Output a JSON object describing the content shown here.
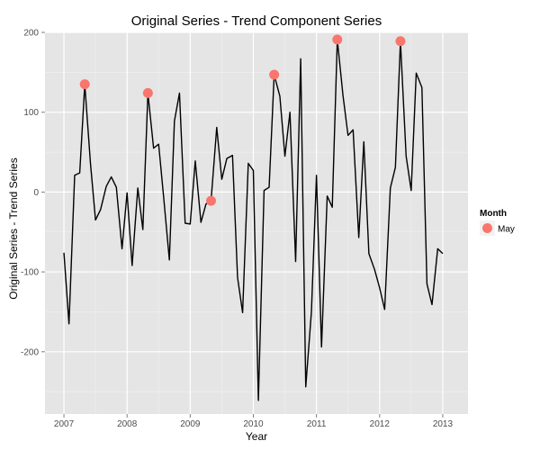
{
  "chart_data": {
    "type": "line",
    "title": "Original Series - Trend Component Series",
    "xlabel": "Year",
    "ylabel": "Original Series - Trend Series",
    "xlim": [
      2006.7,
      2013.4
    ],
    "ylim": [
      -278,
      200
    ],
    "x_ticks": [
      2007,
      2008,
      2009,
      2010,
      2011,
      2012,
      2013
    ],
    "x_tick_labels": [
      "2007",
      "2008",
      "2009",
      "2010",
      "2011",
      "2012",
      "2013"
    ],
    "y_ticks": [
      -200,
      -100,
      0,
      100,
      200
    ],
    "y_tick_labels": [
      "-200",
      "-100",
      "0",
      "100",
      "200"
    ],
    "grid": true,
    "panel_background": "#e5e5e5",
    "line_color": "#000000",
    "point_color": "#f8766d",
    "legend": {
      "title": "Month",
      "position": "right",
      "entries": [
        "May"
      ]
    },
    "series": [
      {
        "values": [
          [
            2007.0,
            -76
          ],
          [
            2007.08,
            -165
          ],
          [
            2007.17,
            21
          ],
          [
            2007.25,
            24
          ],
          [
            2007.33,
            135
          ],
          [
            2007.42,
            36
          ],
          [
            2007.5,
            -35
          ],
          [
            2007.58,
            -22
          ],
          [
            2007.67,
            7
          ],
          [
            2007.75,
            19
          ],
          [
            2007.83,
            6
          ],
          [
            2007.92,
            -71
          ],
          [
            2008.0,
            -1
          ],
          [
            2008.08,
            -92
          ],
          [
            2008.17,
            5
          ],
          [
            2008.25,
            -47
          ],
          [
            2008.33,
            124
          ],
          [
            2008.42,
            55
          ],
          [
            2008.5,
            60
          ],
          [
            2008.58,
            -7
          ],
          [
            2008.67,
            -85
          ],
          [
            2008.75,
            89
          ],
          [
            2008.83,
            124
          ],
          [
            2008.92,
            -39
          ],
          [
            2009.0,
            -40
          ],
          [
            2009.08,
            39
          ],
          [
            2009.17,
            -38
          ],
          [
            2009.25,
            -15
          ],
          [
            2009.33,
            -11
          ],
          [
            2009.42,
            81
          ],
          [
            2009.5,
            16
          ],
          [
            2009.58,
            42
          ],
          [
            2009.67,
            46
          ],
          [
            2009.75,
            -107
          ],
          [
            2009.83,
            -151
          ],
          [
            2009.92,
            36
          ],
          [
            2010.0,
            27
          ],
          [
            2010.08,
            -261
          ],
          [
            2010.17,
            2
          ],
          [
            2010.25,
            6
          ],
          [
            2010.33,
            147
          ],
          [
            2010.42,
            120
          ],
          [
            2010.5,
            45
          ],
          [
            2010.58,
            100
          ],
          [
            2010.67,
            -87
          ],
          [
            2010.75,
            167
          ],
          [
            2010.83,
            -244
          ],
          [
            2010.92,
            -150
          ],
          [
            2011.0,
            21
          ],
          [
            2011.08,
            -194
          ],
          [
            2011.17,
            -5
          ],
          [
            2011.25,
            -19
          ],
          [
            2011.33,
            191
          ],
          [
            2011.42,
            121
          ],
          [
            2011.5,
            71
          ],
          [
            2011.58,
            78
          ],
          [
            2011.67,
            -57
          ],
          [
            2011.75,
            63
          ],
          [
            2011.83,
            -77
          ],
          [
            2011.92,
            -97
          ],
          [
            2012.0,
            -120
          ],
          [
            2012.08,
            -147
          ],
          [
            2012.17,
            5
          ],
          [
            2012.25,
            31
          ],
          [
            2012.33,
            189
          ],
          [
            2012.42,
            45
          ],
          [
            2012.5,
            2
          ],
          [
            2012.58,
            149
          ],
          [
            2012.67,
            131
          ],
          [
            2012.75,
            -115
          ],
          [
            2012.83,
            -141
          ],
          [
            2012.92,
            -71
          ],
          [
            2013.0,
            -77
          ]
        ]
      }
    ],
    "highlight_points": {
      "name": "May",
      "values": [
        [
          2007.33,
          135
        ],
        [
          2008.33,
          124
        ],
        [
          2009.33,
          -11
        ],
        [
          2010.33,
          147
        ],
        [
          2011.33,
          191
        ],
        [
          2012.33,
          189
        ]
      ]
    }
  }
}
